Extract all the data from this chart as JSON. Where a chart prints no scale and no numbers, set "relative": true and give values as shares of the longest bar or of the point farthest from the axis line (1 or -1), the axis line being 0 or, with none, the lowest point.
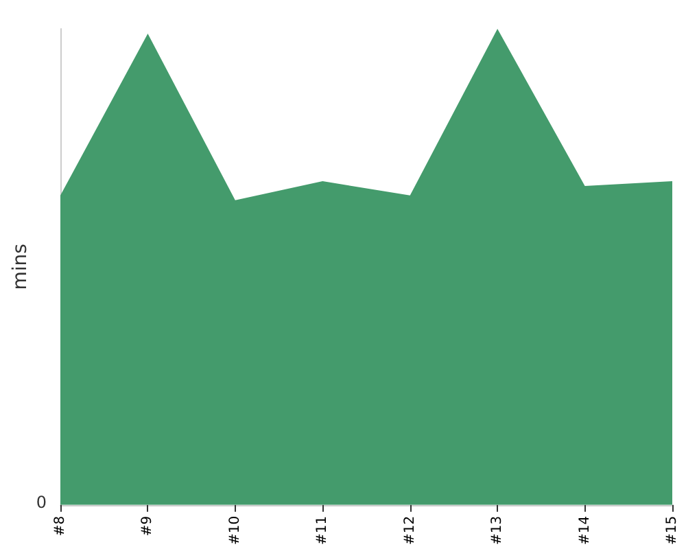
{
  "chart_data": {
    "type": "area",
    "relative": true,
    "ylabel": "mins",
    "categories": [
      "#8",
      "#9",
      "#10",
      "#11",
      "#12",
      "#13",
      "#14",
      "#15"
    ],
    "series": [
      {
        "color": "#449b6c",
        "values": [
          0.65,
          0.99,
          0.64,
          0.68,
          0.65,
          1,
          0.67,
          0.68
        ]
      }
    ],
    "annotations": [
      "0"
    ]
  }
}
